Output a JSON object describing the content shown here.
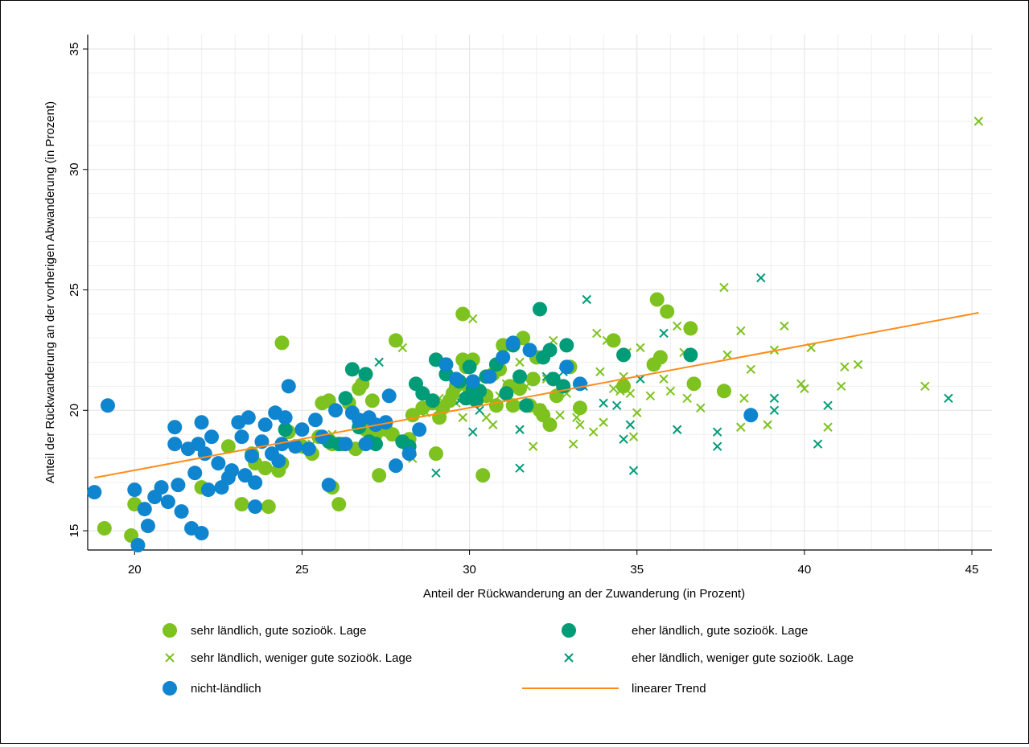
{
  "chart_data": {
    "type": "scatter",
    "title": "",
    "xlabel": "Anteil der Rückwanderung an der Zuwanderung (in Prozent)",
    "ylabel": "Anteil der Rückwanderung an der vorherigen Abwanderung (in Prozent)",
    "xlim": [
      18.6,
      45.6
    ],
    "ylim": [
      14.2,
      35.6
    ],
    "x_ticks": [
      20,
      25,
      30,
      35,
      40,
      45
    ],
    "y_ticks": [
      15,
      20,
      25,
      30,
      35
    ],
    "grid": true,
    "legend_position": "bottom",
    "colors": {
      "light_green": "#7dc21e",
      "teal": "#009b77",
      "blue": "#0f85cf",
      "trend": "#ff8c1a"
    },
    "series": [
      {
        "name": "sehr ländlich, gute sozioök. Lage",
        "marker": "circle",
        "color": "#7dc21e",
        "points": [
          [
            19.1,
            15.1
          ],
          [
            19.9,
            14.8
          ],
          [
            20.0,
            16.1
          ],
          [
            22.0,
            16.8
          ],
          [
            22.8,
            18.5
          ],
          [
            23.2,
            16.1
          ],
          [
            23.5,
            18.2
          ],
          [
            23.6,
            17.8
          ],
          [
            23.9,
            17.6
          ],
          [
            24.0,
            16.0
          ],
          [
            24.3,
            17.5
          ],
          [
            24.4,
            17.8
          ],
          [
            24.4,
            22.8
          ],
          [
            24.6,
            19.1
          ],
          [
            25.0,
            18.5
          ],
          [
            25.3,
            18.2
          ],
          [
            25.5,
            18.9
          ],
          [
            25.6,
            20.3
          ],
          [
            25.8,
            20.4
          ],
          [
            25.9,
            18.6
          ],
          [
            25.9,
            16.8
          ],
          [
            26.1,
            16.1
          ],
          [
            26.2,
            18.6
          ],
          [
            26.4,
            20.3
          ],
          [
            26.6,
            18.4
          ],
          [
            26.7,
            20.9
          ],
          [
            26.8,
            21.1
          ],
          [
            26.9,
            19.2
          ],
          [
            27.1,
            20.4
          ],
          [
            27.2,
            19.0
          ],
          [
            27.3,
            17.3
          ],
          [
            27.5,
            19.2
          ],
          [
            27.7,
            19.0
          ],
          [
            27.8,
            22.9
          ],
          [
            28.2,
            18.8
          ],
          [
            28.3,
            19.8
          ],
          [
            28.6,
            20.1
          ],
          [
            28.9,
            20.3
          ],
          [
            29.0,
            18.2
          ],
          [
            29.1,
            19.7
          ],
          [
            29.2,
            20.1
          ],
          [
            29.4,
            20.4
          ],
          [
            29.5,
            20.7
          ],
          [
            29.6,
            21.0
          ],
          [
            29.8,
            24.0
          ],
          [
            29.8,
            22.1
          ],
          [
            29.9,
            21.8
          ],
          [
            30.0,
            20.9
          ],
          [
            30.1,
            22.1
          ],
          [
            30.4,
            17.3
          ],
          [
            30.5,
            20.6
          ],
          [
            30.7,
            21.5
          ],
          [
            30.8,
            20.2
          ],
          [
            30.9,
            21.7
          ],
          [
            31.0,
            22.7
          ],
          [
            31.2,
            21.0
          ],
          [
            31.3,
            20.2
          ],
          [
            31.5,
            20.9
          ],
          [
            31.6,
            23.0
          ],
          [
            31.8,
            20.2
          ],
          [
            31.9,
            21.3
          ],
          [
            32.0,
            22.2
          ],
          [
            32.1,
            20.0
          ],
          [
            32.2,
            19.8
          ],
          [
            32.4,
            19.4
          ],
          [
            32.6,
            20.6
          ],
          [
            33.0,
            21.8
          ],
          [
            33.3,
            20.1
          ],
          [
            34.3,
            22.9
          ],
          [
            34.6,
            21.0
          ],
          [
            35.5,
            21.9
          ],
          [
            35.6,
            24.6
          ],
          [
            35.7,
            22.2
          ],
          [
            35.9,
            24.1
          ],
          [
            36.6,
            23.4
          ],
          [
            36.7,
            21.1
          ],
          [
            37.6,
            20.8
          ]
        ]
      },
      {
        "name": "eher ländlich, gute sozioök. Lage",
        "marker": "circle",
        "color": "#009b77",
        "points": [
          [
            24.5,
            19.2
          ],
          [
            25.8,
            18.7
          ],
          [
            26.1,
            18.6
          ],
          [
            26.3,
            20.5
          ],
          [
            26.5,
            21.7
          ],
          [
            26.7,
            19.3
          ],
          [
            26.9,
            21.5
          ],
          [
            27.0,
            18.7
          ],
          [
            27.2,
            18.6
          ],
          [
            28.0,
            18.7
          ],
          [
            28.2,
            18.5
          ],
          [
            28.4,
            21.1
          ],
          [
            28.6,
            20.7
          ],
          [
            28.9,
            20.4
          ],
          [
            29.0,
            22.1
          ],
          [
            29.3,
            21.5
          ],
          [
            29.7,
            21.2
          ],
          [
            29.9,
            20.5
          ],
          [
            30.0,
            21.8
          ],
          [
            30.1,
            20.9
          ],
          [
            30.2,
            20.4
          ],
          [
            30.3,
            20.8
          ],
          [
            30.5,
            21.4
          ],
          [
            30.8,
            21.9
          ],
          [
            31.1,
            20.7
          ],
          [
            31.3,
            22.7
          ],
          [
            31.5,
            21.4
          ],
          [
            31.7,
            20.2
          ],
          [
            32.1,
            24.2
          ],
          [
            32.2,
            22.2
          ],
          [
            32.4,
            22.5
          ],
          [
            32.5,
            21.3
          ],
          [
            32.8,
            21.0
          ],
          [
            32.9,
            22.7
          ],
          [
            34.6,
            22.3
          ],
          [
            36.6,
            22.3
          ]
        ]
      },
      {
        "name": "nicht-ländlich",
        "marker": "circle",
        "color": "#0f85cf",
        "points": [
          [
            18.8,
            16.6
          ],
          [
            19.2,
            20.2
          ],
          [
            20.0,
            16.7
          ],
          [
            20.1,
            14.4
          ],
          [
            20.3,
            15.9
          ],
          [
            20.4,
            15.2
          ],
          [
            20.6,
            16.4
          ],
          [
            20.8,
            16.8
          ],
          [
            21.0,
            16.2
          ],
          [
            21.2,
            18.6
          ],
          [
            21.2,
            19.3
          ],
          [
            21.3,
            16.9
          ],
          [
            21.4,
            15.8
          ],
          [
            21.6,
            18.4
          ],
          [
            21.7,
            15.1
          ],
          [
            21.8,
            17.4
          ],
          [
            21.9,
            18.6
          ],
          [
            22.0,
            19.5
          ],
          [
            22.0,
            14.9
          ],
          [
            22.1,
            18.2
          ],
          [
            22.2,
            16.7
          ],
          [
            22.3,
            18.9
          ],
          [
            22.5,
            17.8
          ],
          [
            22.6,
            16.8
          ],
          [
            22.8,
            17.2
          ],
          [
            22.9,
            17.5
          ],
          [
            23.1,
            19.5
          ],
          [
            23.2,
            18.9
          ],
          [
            23.3,
            17.3
          ],
          [
            23.4,
            19.7
          ],
          [
            23.5,
            18.1
          ],
          [
            23.6,
            17.0
          ],
          [
            23.6,
            16.0
          ],
          [
            23.8,
            18.7
          ],
          [
            23.9,
            19.4
          ],
          [
            24.1,
            18.2
          ],
          [
            24.2,
            19.9
          ],
          [
            24.3,
            17.9
          ],
          [
            24.4,
            18.6
          ],
          [
            24.5,
            19.7
          ],
          [
            24.6,
            21.0
          ],
          [
            24.8,
            18.5
          ],
          [
            25.0,
            19.2
          ],
          [
            25.2,
            18.4
          ],
          [
            25.4,
            19.6
          ],
          [
            25.6,
            18.9
          ],
          [
            25.8,
            16.9
          ],
          [
            26.0,
            20.0
          ],
          [
            26.3,
            18.6
          ],
          [
            26.5,
            19.9
          ],
          [
            26.7,
            19.6
          ],
          [
            26.9,
            18.6
          ],
          [
            27.0,
            19.7
          ],
          [
            27.2,
            19.4
          ],
          [
            27.5,
            19.5
          ],
          [
            27.6,
            20.6
          ],
          [
            27.8,
            17.7
          ],
          [
            28.2,
            18.2
          ],
          [
            28.5,
            19.2
          ],
          [
            29.3,
            21.9
          ],
          [
            29.6,
            21.3
          ],
          [
            30.1,
            21.2
          ],
          [
            30.6,
            21.4
          ],
          [
            31.0,
            22.2
          ],
          [
            31.3,
            22.8
          ],
          [
            31.8,
            22.5
          ],
          [
            32.9,
            21.8
          ],
          [
            33.3,
            21.1
          ],
          [
            38.4,
            19.8
          ]
        ]
      },
      {
        "name": "sehr ländlich, weniger gute sozioök. Lage",
        "marker": "x",
        "color": "#7dc21e",
        "points": [
          [
            25.3,
            18.6
          ],
          [
            25.9,
            19.0
          ],
          [
            26.5,
            20.0
          ],
          [
            27.2,
            19.0
          ],
          [
            27.7,
            18.9
          ],
          [
            28.0,
            22.6
          ],
          [
            28.3,
            18.0
          ],
          [
            28.7,
            19.9
          ],
          [
            29.1,
            20.5
          ],
          [
            29.3,
            22.0
          ],
          [
            29.6,
            20.3
          ],
          [
            29.8,
            19.7
          ],
          [
            30.1,
            23.8
          ],
          [
            30.3,
            20.9
          ],
          [
            30.5,
            19.7
          ],
          [
            30.7,
            19.4
          ],
          [
            30.9,
            20.6
          ],
          [
            31.1,
            21.1
          ],
          [
            31.4,
            20.2
          ],
          [
            31.5,
            22.0
          ],
          [
            31.7,
            21.0
          ],
          [
            31.9,
            18.5
          ],
          [
            32.1,
            20.1
          ],
          [
            32.3,
            21.3
          ],
          [
            32.5,
            22.9
          ],
          [
            32.7,
            19.8
          ],
          [
            32.9,
            20.7
          ],
          [
            33.1,
            18.6
          ],
          [
            33.2,
            19.7
          ],
          [
            33.3,
            19.4
          ],
          [
            33.7,
            19.1
          ],
          [
            33.8,
            23.2
          ],
          [
            33.9,
            21.6
          ],
          [
            34.0,
            19.5
          ],
          [
            34.1,
            22.9
          ],
          [
            34.3,
            20.9
          ],
          [
            34.5,
            20.8
          ],
          [
            34.6,
            21.4
          ],
          [
            34.7,
            22.4
          ],
          [
            34.8,
            20.7
          ],
          [
            34.9,
            18.9
          ],
          [
            35.0,
            19.9
          ],
          [
            35.1,
            22.6
          ],
          [
            35.4,
            20.6
          ],
          [
            35.6,
            22.0
          ],
          [
            35.8,
            21.3
          ],
          [
            36.0,
            20.8
          ],
          [
            36.2,
            23.5
          ],
          [
            36.4,
            22.4
          ],
          [
            36.5,
            20.5
          ],
          [
            36.9,
            20.1
          ],
          [
            37.6,
            25.1
          ],
          [
            37.7,
            22.3
          ],
          [
            38.1,
            23.3
          ],
          [
            38.1,
            19.3
          ],
          [
            38.2,
            20.5
          ],
          [
            38.4,
            21.7
          ],
          [
            38.9,
            19.4
          ],
          [
            39.1,
            22.5
          ],
          [
            39.4,
            23.5
          ],
          [
            39.9,
            21.1
          ],
          [
            40.0,
            20.9
          ],
          [
            40.2,
            22.6
          ],
          [
            40.7,
            19.3
          ],
          [
            41.1,
            21.0
          ],
          [
            41.2,
            21.8
          ],
          [
            41.6,
            21.9
          ],
          [
            43.6,
            21.0
          ],
          [
            45.2,
            32.0
          ]
        ]
      },
      {
        "name": "eher ländlich, weniger gute sozioök. Lage",
        "marker": "x",
        "color": "#009b77",
        "points": [
          [
            27.3,
            22.0
          ],
          [
            29.0,
            17.4
          ],
          [
            29.7,
            20.4
          ],
          [
            30.1,
            19.1
          ],
          [
            30.3,
            20.0
          ],
          [
            31.5,
            19.2
          ],
          [
            31.5,
            17.6
          ],
          [
            32.3,
            21.4
          ],
          [
            32.8,
            21.6
          ],
          [
            33.4,
            21.0
          ],
          [
            33.5,
            24.6
          ],
          [
            34.0,
            20.3
          ],
          [
            34.4,
            20.2
          ],
          [
            34.6,
            18.8
          ],
          [
            34.8,
            19.4
          ],
          [
            34.9,
            17.5
          ],
          [
            35.1,
            21.3
          ],
          [
            35.8,
            23.2
          ],
          [
            36.2,
            19.2
          ],
          [
            37.4,
            18.5
          ],
          [
            37.4,
            19.1
          ],
          [
            38.7,
            25.5
          ],
          [
            39.1,
            20.0
          ],
          [
            39.1,
            20.5
          ],
          [
            40.4,
            18.6
          ],
          [
            40.7,
            20.2
          ],
          [
            44.3,
            20.5
          ]
        ]
      }
    ],
    "trend": {
      "name": "linearer Trend",
      "x": [
        18.8,
        45.2
      ],
      "y": [
        17.2,
        24.05
      ]
    },
    "legend": [
      {
        "label": "sehr ländlich, gute sozioök. Lage",
        "marker": "circle",
        "color": "#7dc21e"
      },
      {
        "label": "eher ländlich, gute sozioök. Lage",
        "marker": "circle",
        "color": "#009b77"
      },
      {
        "label": "sehr ländlich, weniger gute sozioök. Lage",
        "marker": "x",
        "color": "#7dc21e"
      },
      {
        "label": "eher ländlich, weniger gute sozioök. Lage",
        "marker": "x",
        "color": "#009b77"
      },
      {
        "label": "nicht-ländlich",
        "marker": "circle",
        "color": "#0f85cf"
      },
      {
        "label": "linearer Trend",
        "marker": "line",
        "color": "#ff8c1a"
      }
    ]
  }
}
